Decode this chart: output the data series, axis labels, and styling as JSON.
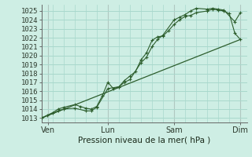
{
  "bg_color": "#ceeee4",
  "grid_color": "#a8d8cc",
  "line_color": "#2d5e2d",
  "marker_color": "#2d5e2d",
  "ylim": [
    1012.5,
    1025.7
  ],
  "xlabel": "Pression niveau de la mer( hPa )",
  "x_tick_positions": [
    0.1,
    1.0,
    2.0,
    3.0
  ],
  "x_tick_labels": [
    "Ven",
    "Lun",
    "Sam",
    "Dim"
  ],
  "x_vlines": [
    0.1,
    1.0,
    2.0,
    3.0
  ],
  "x_total_min": 0.0,
  "x_total_max": 3.1,
  "line1_x": [
    0.0,
    0.083,
    0.167,
    0.25,
    0.333,
    0.5,
    0.583,
    0.667,
    0.75,
    0.833,
    0.917,
    1.0,
    1.083,
    1.167,
    1.25,
    1.333,
    1.417,
    1.5,
    1.583,
    1.667,
    1.75,
    1.833,
    1.917,
    2.0,
    2.083,
    2.167,
    2.25,
    2.333,
    2.5,
    2.583,
    2.667,
    2.75,
    2.833,
    2.917,
    3.0
  ],
  "line1_y": [
    1013.0,
    1013.3,
    1013.6,
    1014.0,
    1014.2,
    1014.5,
    1014.3,
    1014.1,
    1014.0,
    1014.3,
    1015.5,
    1017.0,
    1016.3,
    1016.5,
    1017.2,
    1017.7,
    1018.2,
    1019.5,
    1020.3,
    1021.7,
    1022.1,
    1022.2,
    1022.8,
    1023.5,
    1024.0,
    1024.4,
    1024.5,
    1024.8,
    1025.0,
    1025.2,
    1025.1,
    1025.0,
    1024.7,
    1022.5,
    1021.8
  ],
  "line2_x": [
    0.0,
    0.25,
    0.333,
    0.5,
    0.667,
    0.75,
    0.833,
    1.0,
    1.167,
    1.25,
    1.333,
    1.5,
    1.583,
    1.667,
    1.75,
    1.833,
    2.0,
    2.083,
    2.167,
    2.25,
    2.333,
    2.5,
    2.583,
    2.667,
    2.75,
    2.917,
    3.0
  ],
  "line2_y": [
    1013.0,
    1013.8,
    1014.0,
    1014.1,
    1013.8,
    1013.8,
    1014.2,
    1016.3,
    1016.5,
    1017.0,
    1017.3,
    1019.2,
    1019.8,
    1021.0,
    1021.8,
    1022.3,
    1024.0,
    1024.3,
    1024.6,
    1025.0,
    1025.3,
    1025.2,
    1025.3,
    1025.2,
    1025.1,
    1023.8,
    1024.8
  ],
  "line3_x": [
    0.0,
    3.0
  ],
  "line3_y": [
    1013.0,
    1021.8
  ],
  "yticks": [
    1013,
    1014,
    1015,
    1016,
    1017,
    1018,
    1019,
    1020,
    1021,
    1022,
    1023,
    1024,
    1025
  ]
}
